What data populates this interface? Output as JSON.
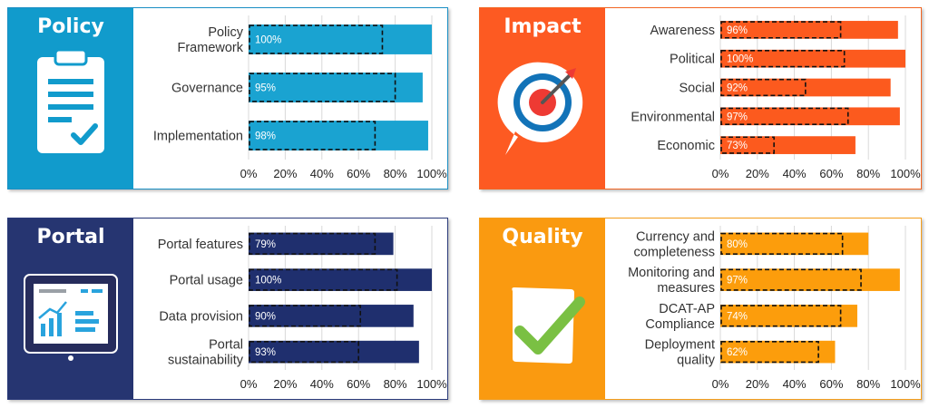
{
  "chart_data": [
    {
      "type": "bar",
      "title": "Policy",
      "icon": "clipboard-check-icon",
      "color": "#1aa3d1",
      "side_color": "#119bcc",
      "border": "#1a8fc4",
      "categories": [
        [
          "Policy",
          "Framework"
        ],
        [
          "Governance"
        ],
        [
          "Implementation"
        ]
      ],
      "values": [
        100,
        95,
        98
      ],
      "labels": [
        "100%",
        "95%",
        "98%"
      ],
      "ticks": [
        "0%",
        "20%",
        "40%",
        "60%",
        "80%",
        "100%"
      ],
      "xlim": [
        0,
        100
      ],
      "dashed_values": [
        73,
        80,
        69
      ]
    },
    {
      "type": "bar",
      "title": "Impact",
      "icon": "target-dart-icon",
      "color": "#fc5a1e",
      "side_color": "#fd5a22",
      "border": "#f26522",
      "categories": [
        [
          "Awareness"
        ],
        [
          "Political"
        ],
        [
          "Social"
        ],
        [
          "Environmental"
        ],
        [
          "Economic"
        ]
      ],
      "values": [
        96,
        100,
        92,
        97,
        73
      ],
      "labels": [
        "96%",
        "100%",
        "92%",
        "97%",
        "73%"
      ],
      "ticks": [
        "0%",
        "20%",
        "40%",
        "60%",
        "80%",
        "100%"
      ],
      "xlim": [
        0,
        100
      ],
      "dashed_values": [
        65,
        67,
        46,
        69,
        29
      ]
    },
    {
      "type": "bar",
      "title": "Portal",
      "icon": "dashboard-monitor-icon",
      "color": "#1f2f6e",
      "side_color": "#263571",
      "border": "#2a3a7a",
      "categories": [
        [
          "Portal features"
        ],
        [
          "Portal usage"
        ],
        [
          "Data provision"
        ],
        [
          "Portal",
          "sustainability"
        ]
      ],
      "values": [
        79,
        100,
        90,
        93
      ],
      "labels": [
        "79%",
        "100%",
        "90%",
        "93%"
      ],
      "ticks": [
        "0%",
        "20%",
        "40%",
        "60%",
        "80%",
        "100%"
      ],
      "xlim": [
        0,
        100
      ],
      "dashed_values": [
        69,
        81,
        61,
        60
      ]
    },
    {
      "type": "bar",
      "title": "Quality",
      "icon": "checkmark-note-icon",
      "color": "#fc9d0c",
      "side_color": "#fa9a10",
      "border": "#f59e1b",
      "categories": [
        [
          "Currency and",
          "completeness"
        ],
        [
          "Monitoring and",
          "measures"
        ],
        [
          "DCAT-AP",
          "Compliance"
        ],
        [
          "Deployment",
          "quality"
        ]
      ],
      "values": [
        80,
        97,
        74,
        62
      ],
      "labels": [
        "80%",
        "97%",
        "74%",
        "62%"
      ],
      "ticks": [
        "0%",
        "20%",
        "40%",
        "60%",
        "80%",
        "100%"
      ],
      "xlim": [
        0,
        100
      ],
      "dashed_values": [
        66,
        76,
        65,
        53
      ]
    }
  ]
}
